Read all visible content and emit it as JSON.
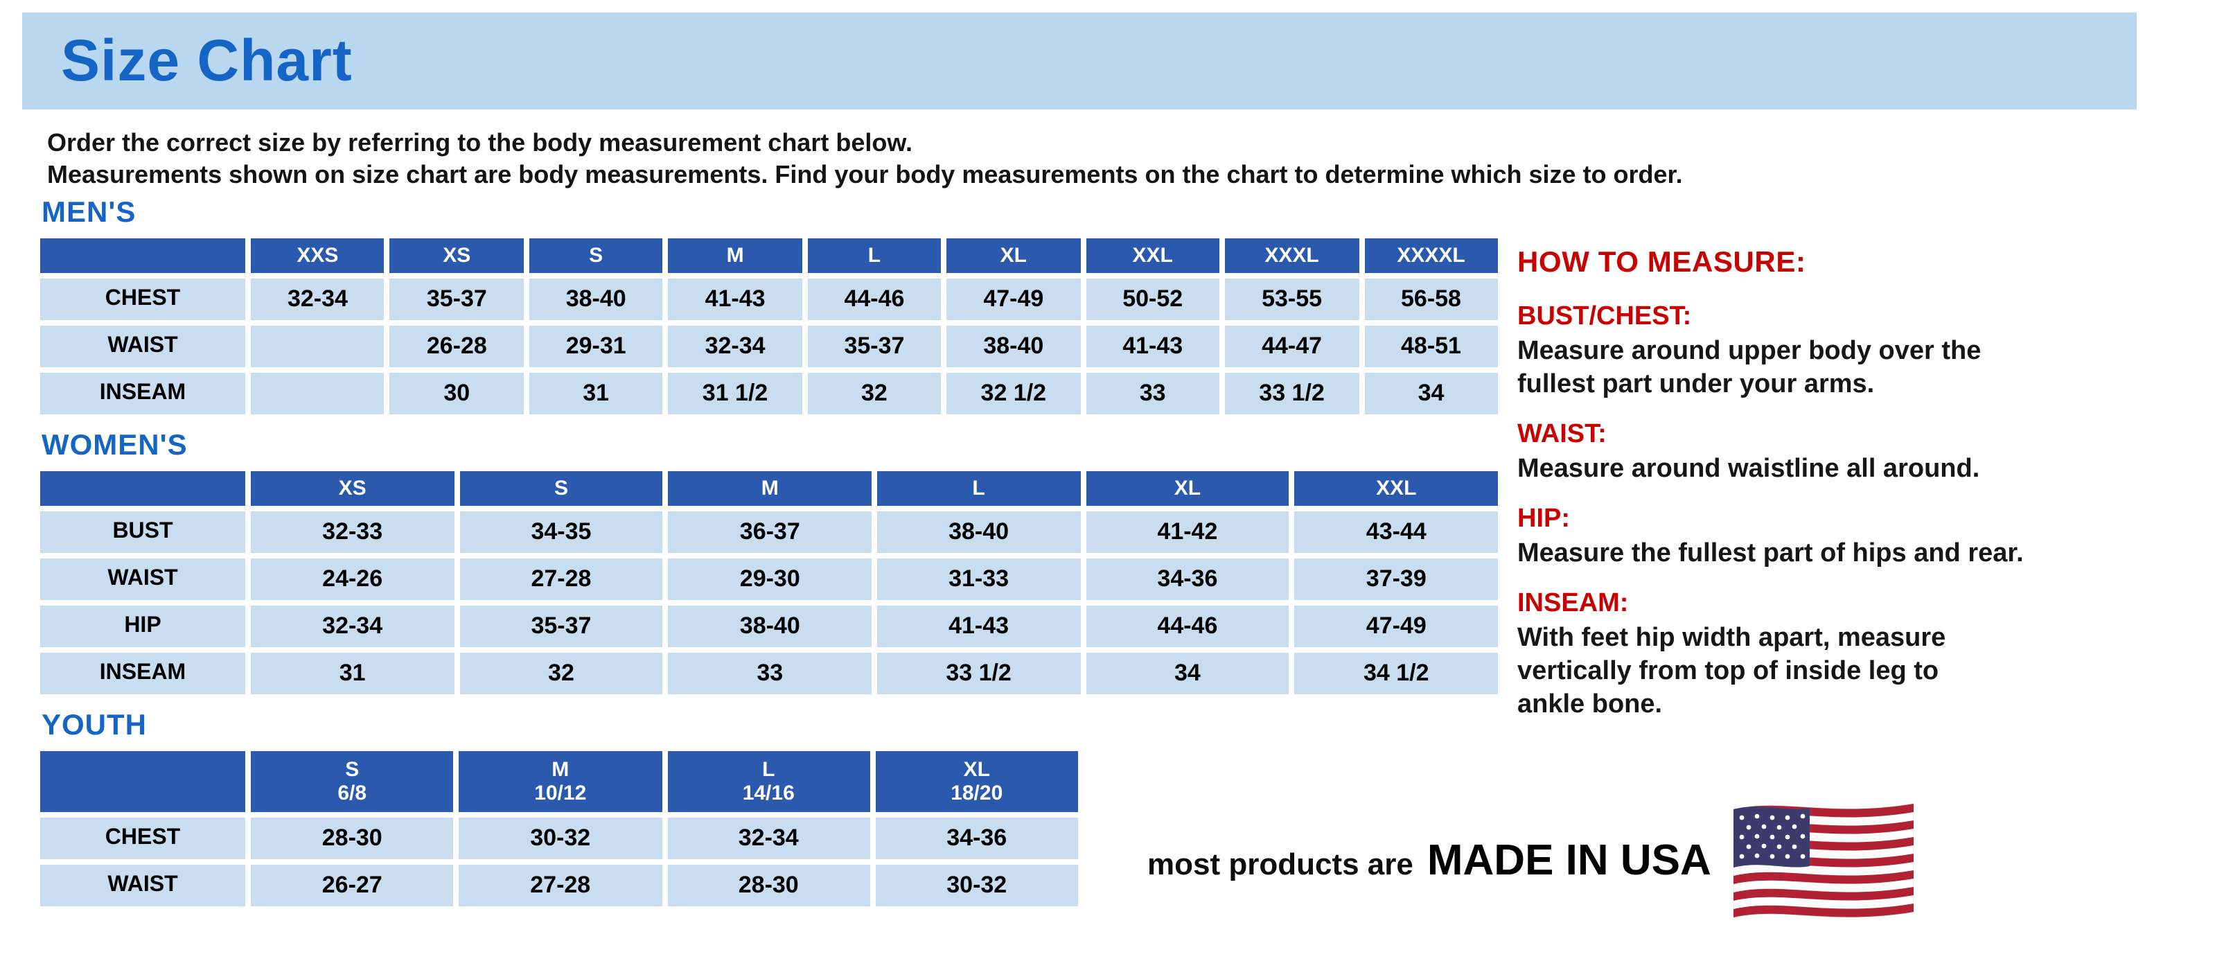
{
  "colors": {
    "banner_bg": "#b9d8ef",
    "title_blue": "#1565c6",
    "header_blue": "#2b59ae",
    "cell_blue": "#c8ddf0",
    "red": "#c80000",
    "flag_red": "#B22234",
    "flag_blue": "#3C3B6E"
  },
  "page": {
    "title": "Size Chart",
    "intro_line1": "Order the correct size by referring to the body measurement chart below.",
    "intro_line2": "Measurements shown on size chart are body measurements.  Find your body measurements on the chart to determine which size to order."
  },
  "tables": {
    "mens": {
      "heading": "MEN'S",
      "columns": [
        "XXS",
        "XS",
        "S",
        "M",
        "L",
        "XL",
        "XXL",
        "XXXL",
        "XXXXL"
      ],
      "rows": [
        {
          "label": "CHEST",
          "values": [
            "32-34",
            "35-37",
            "38-40",
            "41-43",
            "44-46",
            "47-49",
            "50-52",
            "53-55",
            "56-58"
          ]
        },
        {
          "label": "WAIST",
          "values": [
            "",
            "26-28",
            "29-31",
            "32-34",
            "35-37",
            "38-40",
            "41-43",
            "44-47",
            "48-51"
          ]
        },
        {
          "label": "INSEAM",
          "values": [
            "",
            "30",
            "31",
            "31 1/2",
            "32",
            "32 1/2",
            "33",
            "33 1/2",
            "34"
          ]
        }
      ]
    },
    "womens": {
      "heading": "WOMEN'S",
      "columns": [
        "XS",
        "S",
        "M",
        "L",
        "XL",
        "XXL"
      ],
      "rows": [
        {
          "label": "BUST",
          "values": [
            "32-33",
            "34-35",
            "36-37",
            "38-40",
            "41-42",
            "43-44"
          ]
        },
        {
          "label": "WAIST",
          "values": [
            "24-26",
            "27-28",
            "29-30",
            "31-33",
            "34-36",
            "37-39"
          ]
        },
        {
          "label": "HIP",
          "values": [
            "32-34",
            "35-37",
            "38-40",
            "41-43",
            "44-46",
            "47-49"
          ]
        },
        {
          "label": "INSEAM",
          "values": [
            "31",
            "32",
            "33",
            "33 1/2",
            "34",
            "34 1/2"
          ]
        }
      ]
    },
    "youth": {
      "heading": "YOUTH",
      "columns": [
        {
          "size": "S",
          "range": "6/8"
        },
        {
          "size": "M",
          "range": "10/12"
        },
        {
          "size": "L",
          "range": "14/16"
        },
        {
          "size": "XL",
          "range": "18/20"
        }
      ],
      "rows": [
        {
          "label": "CHEST",
          "values": [
            "28-30",
            "30-32",
            "32-34",
            "34-36"
          ]
        },
        {
          "label": "WAIST",
          "values": [
            "26-27",
            "27-28",
            "28-30",
            "30-32"
          ]
        }
      ]
    }
  },
  "how_to_measure": {
    "heading": "HOW TO MEASURE:",
    "items": [
      {
        "term": "BUST/CHEST:",
        "description": "Measure around upper body over the\nfullest part under your arms."
      },
      {
        "term": "WAIST:",
        "description": "Measure around waistline all around."
      },
      {
        "term": "HIP:",
        "description": "Measure the fullest part of hips and rear."
      },
      {
        "term": "INSEAM:",
        "description": "With feet hip width apart, measure\nvertically from top of inside leg to\nankle bone."
      }
    ]
  },
  "footer": {
    "made_in_prefix": "most products are",
    "made_in": "MADE IN USA",
    "flag_icon": "us-flag-icon"
  }
}
